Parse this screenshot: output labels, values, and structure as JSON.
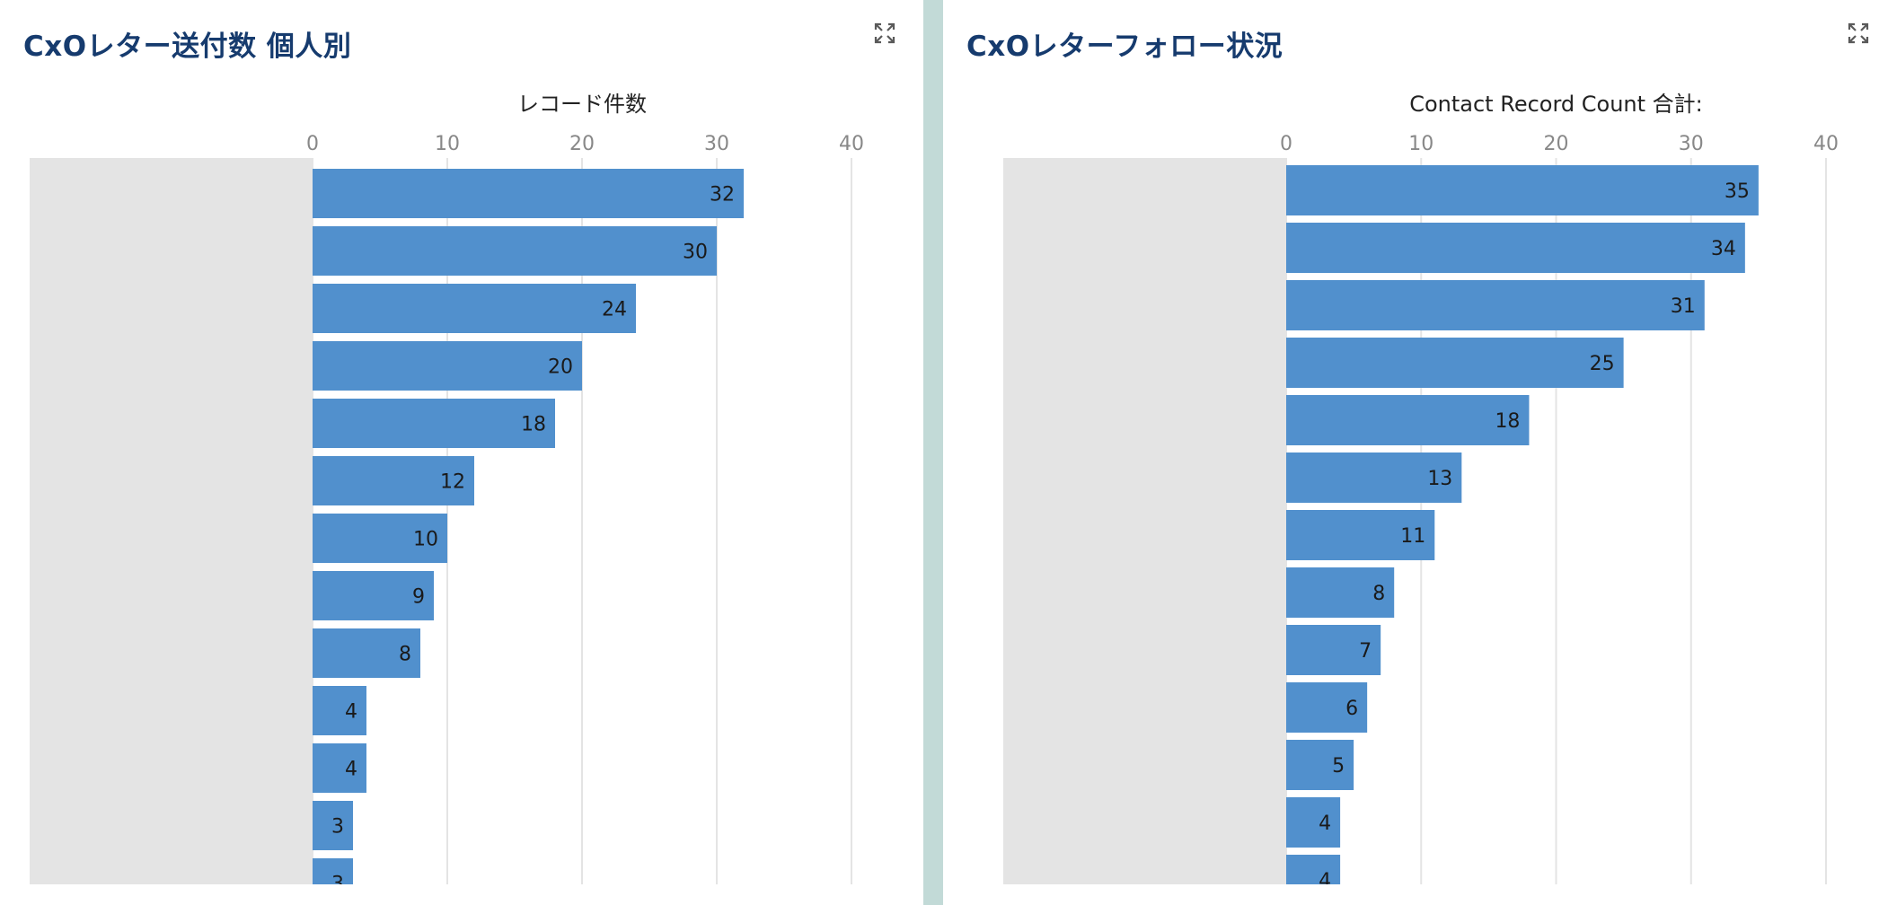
{
  "colors": {
    "bar": "#5190cd",
    "title": "#163b6e",
    "label_area": "#e4e4e4",
    "divider": "#c2dad7",
    "gridline": "#e4e4e4"
  },
  "icons": {
    "expand": "expand-icon"
  },
  "panels": [
    {
      "title": "CxOレター送付数 個人別"
    },
    {
      "title": "CxOレターフォロー状況"
    }
  ],
  "chart_data": [
    {
      "type": "bar",
      "orientation": "horizontal",
      "xlabel": "レコード件数",
      "xlim": [
        0,
        40
      ],
      "xticks": [
        0,
        10,
        20,
        30,
        40
      ],
      "grid": true,
      "categories": [
        "",
        "",
        "",
        "",
        "",
        "",
        "",
        "",
        "",
        "",
        "",
        "",
        ""
      ],
      "values": [
        32,
        30,
        24,
        20,
        18,
        12,
        10,
        9,
        8,
        4,
        4,
        3,
        3
      ]
    },
    {
      "type": "bar",
      "orientation": "horizontal",
      "xlabel": "Contact Record Count 合計:",
      "xlim": [
        0,
        40
      ],
      "xticks": [
        0,
        10,
        20,
        30,
        40
      ],
      "grid": true,
      "categories": [
        "",
        "",
        "",
        "",
        "",
        "",
        "",
        "",
        "",
        "",
        "",
        "",
        ""
      ],
      "values": [
        35,
        34,
        31,
        25,
        18,
        13,
        11,
        8,
        7,
        6,
        5,
        4,
        4
      ]
    }
  ]
}
